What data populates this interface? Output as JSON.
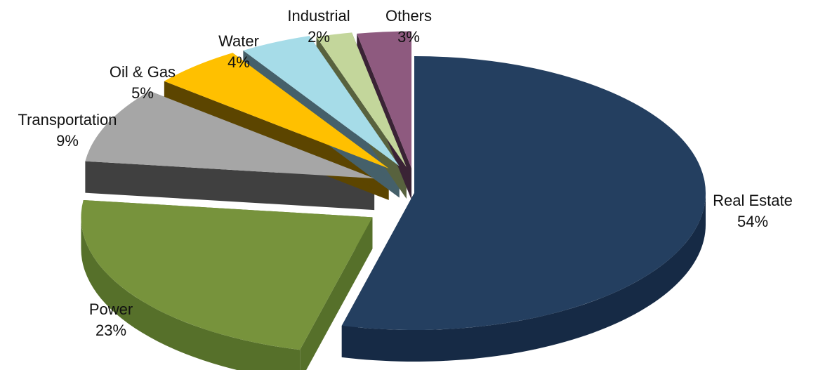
{
  "chart_data": {
    "type": "pie",
    "style": "3d-exploded",
    "title": "",
    "slices": [
      {
        "label": "Real Estate",
        "value": 54,
        "display": "54%",
        "color": "#243F60",
        "side": "#162a45"
      },
      {
        "label": "Power",
        "value": 23,
        "display": "23%",
        "color": "#77933C",
        "side": "#56702a"
      },
      {
        "label": "Transportation",
        "value": 9,
        "display": "9%",
        "color": "#A6A6A6",
        "side": "#404040"
      },
      {
        "label": "Oil & Gas",
        "value": 5,
        "display": "5%",
        "color": "#FFC000",
        "side": "#5c4500"
      },
      {
        "label": "Water",
        "value": 4,
        "display": "4%",
        "color": "#A6DCE8",
        "side": "#45606a"
      },
      {
        "label": "Industrial",
        "value": 2,
        "display": "2%",
        "color": "#C3D69B",
        "side": "#58623e"
      },
      {
        "label": "Others",
        "value": 3,
        "display": "3%",
        "color": "#8E5A7F",
        "side": "#3a2335"
      }
    ]
  }
}
